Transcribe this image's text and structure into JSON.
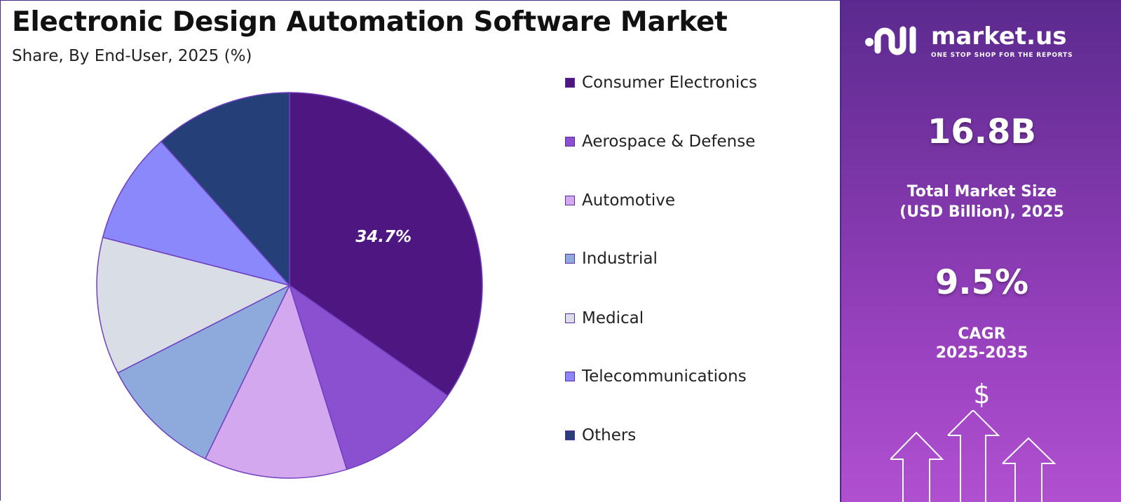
{
  "header": {
    "title": "Electronic Design Automation Software Market",
    "subtitle": "Share, By End-User, 2025 (%)"
  },
  "chart_data": {
    "type": "pie",
    "categories": [
      "Consumer Electronics",
      "Aerospace & Defense",
      "Automotive",
      "Industrial",
      "Medical",
      "Telecommunications",
      "Others"
    ],
    "values": [
      34.7,
      10.5,
      12.0,
      10.3,
      11.5,
      9.4,
      11.6
    ],
    "data_labels": [
      "34.7%",
      "",
      "",
      "",
      "",
      "",
      ""
    ],
    "colors": [
      "#4e1680",
      "#8a50d0",
      "#d4a8ee",
      "#8eaadd",
      "#d8dde6",
      "#8a88fa",
      "#253f78"
    ],
    "edge_color": "#7040c0",
    "legend_position": "right",
    "start_angle_deg": 0,
    "direction": "clockwise"
  },
  "sidebar": {
    "brand": "market.us",
    "tagline": "ONE STOP SHOP FOR THE REPORTS",
    "market_size_value": "16.8B",
    "market_size_label_line1": "Total Market Size",
    "market_size_label_line2": "(USD Billion), 2025",
    "cagr_value": "9.5%",
    "cagr_label_line1": "CAGR",
    "cagr_label_line2": "2025-2035",
    "dollar_symbol": "$",
    "icons": [
      "market-us-logo-icon",
      "dollar-icon",
      "up-arrows-icon"
    ]
  }
}
